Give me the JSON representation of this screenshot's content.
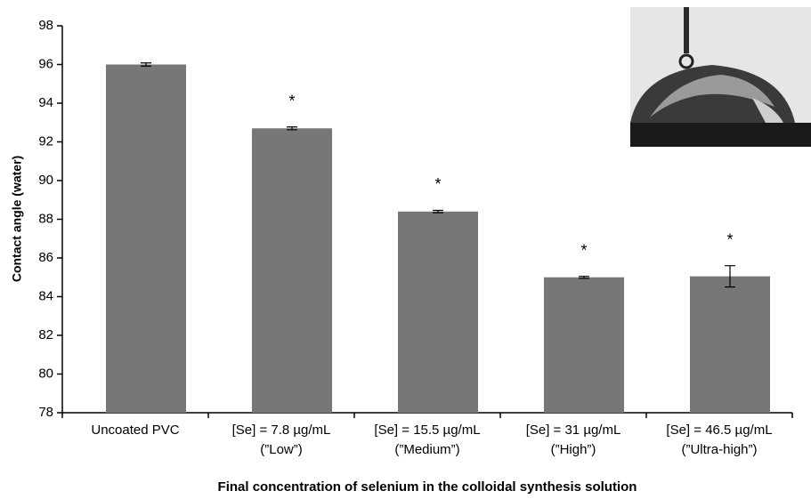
{
  "chart_data": {
    "type": "bar",
    "x_label": "Final concentration of selenium in the colloidal synthesis solution",
    "y_label": "Contact angle (water)",
    "categories": [
      [
        "Uncoated PVC"
      ],
      [
        "[Se] = 7.8 µg/mL",
        "(”Low”)"
      ],
      [
        "[Se] = 15.5 µg/mL",
        "(”Medium”)"
      ],
      [
        "[Se] = 31 µg/mL",
        "(”High”)"
      ],
      [
        "[Se] = 46.5 µg/mL",
        "(”Ultra-high”)"
      ]
    ],
    "values": [
      96.0,
      92.7,
      88.4,
      85.0,
      85.05
    ],
    "errors": [
      0.08,
      0.07,
      0.06,
      0.05,
      0.55
    ],
    "significance": [
      null,
      "*",
      "*",
      "*",
      "*"
    ],
    "color": "#777777",
    "ylim": [
      78,
      98
    ],
    "yticks": [
      78,
      80,
      82,
      84,
      86,
      88,
      90,
      92,
      94,
      96,
      98
    ],
    "grid": false
  }
}
